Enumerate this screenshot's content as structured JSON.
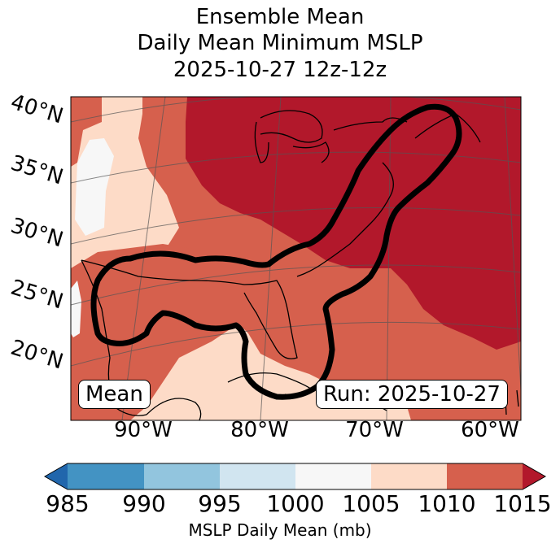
{
  "title": {
    "line1": "Ensemble Mean",
    "line2": "Daily Mean Minimum MSLP",
    "line3": "2025-10-27 12z-12z"
  },
  "map": {
    "lat_labels": [
      "40°N",
      "35°N",
      "30°N",
      "25°N",
      "20°N"
    ],
    "lon_labels": [
      "90°W",
      "80°W",
      "70°W",
      "60°W"
    ],
    "mean_box": "Mean",
    "run_box": "Run: 2025-10-27"
  },
  "colorbar": {
    "ticks": [
      "985",
      "990",
      "995",
      "1000",
      "1005",
      "1010",
      "1015"
    ],
    "label": "MSLP Daily Mean (mb)",
    "colors": {
      "under": "#2166ac",
      "b985_990": "#4393c3",
      "b990_995": "#92c5de",
      "b995_1000": "#d1e5f0",
      "b1000_1005": "#f7f7f7",
      "b1005_1010": "#fddbc7",
      "b1010_1015": "#d6604d",
      "over": "#b2182b"
    }
  }
}
